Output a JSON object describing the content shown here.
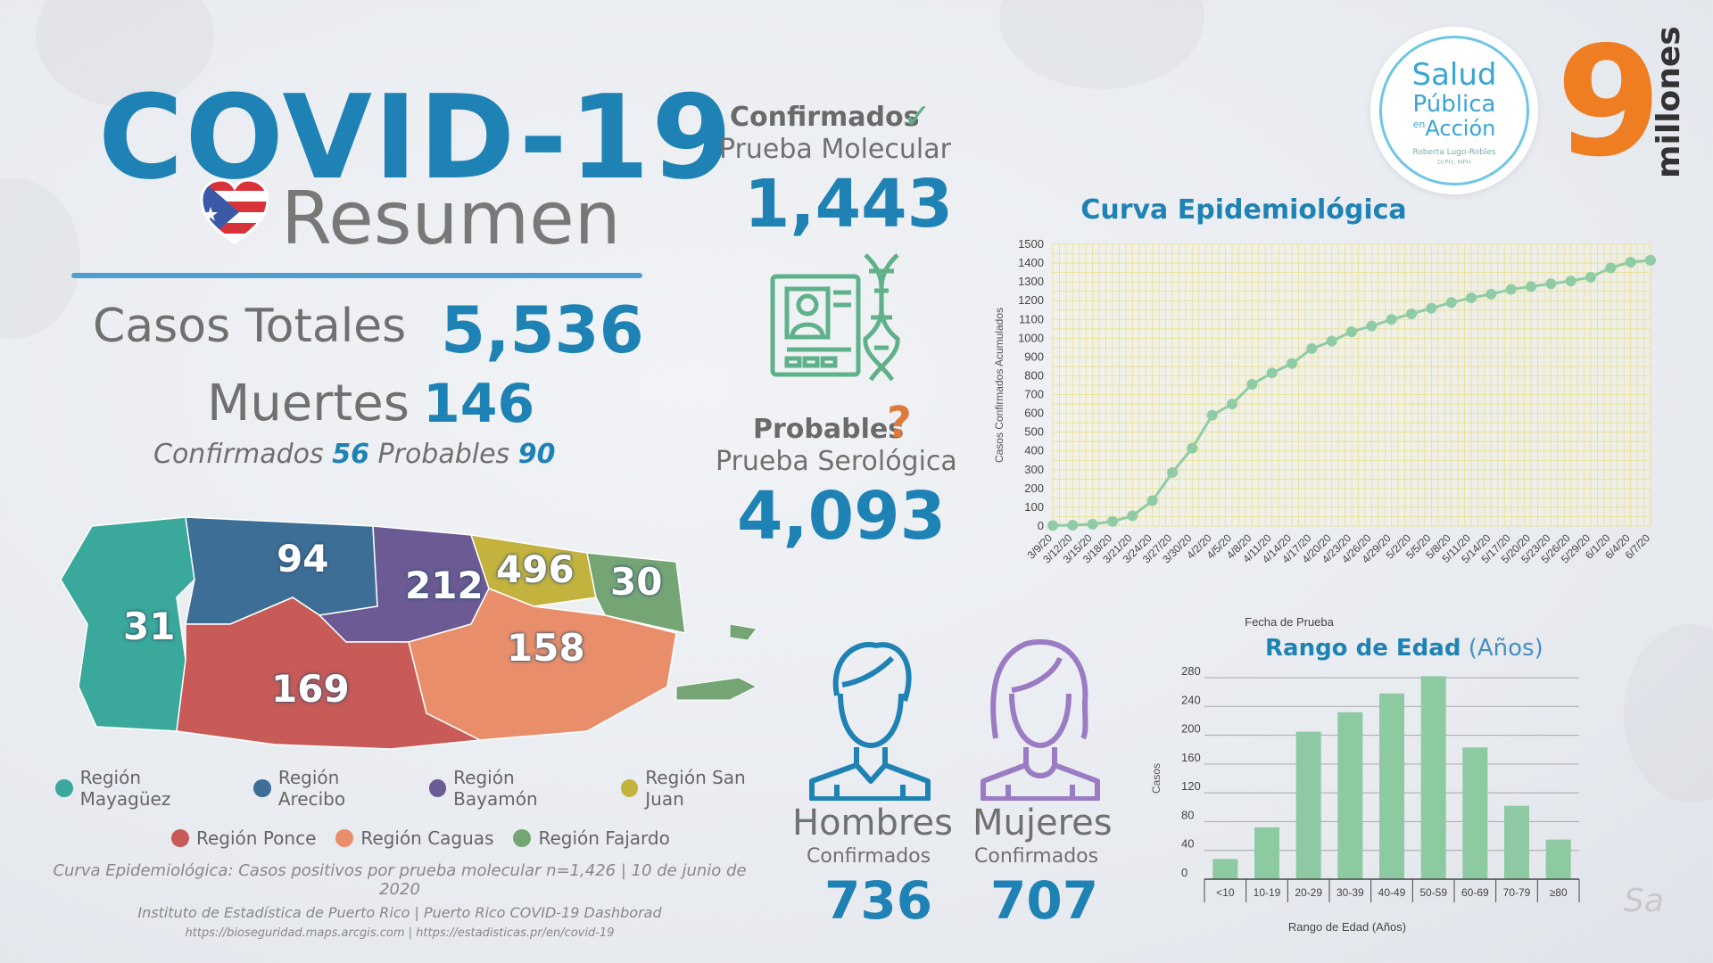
{
  "header": {
    "title": "COVID-19",
    "subtitle": "Resumen"
  },
  "summary": {
    "total_label": "Casos Totales",
    "total_value": "5,536",
    "deaths_label": "Muertes",
    "deaths_value": "146",
    "deaths_confirmed_label": "Confirmados",
    "deaths_confirmed_value": "56",
    "deaths_probable_label": "Probables",
    "deaths_probable_value": "90"
  },
  "map": {
    "regions": [
      {
        "name": "Región Mayagüez",
        "color": "#3aa89b",
        "value": "31"
      },
      {
        "name": "Región Arecibo",
        "color": "#3d6e96",
        "value": "94"
      },
      {
        "name": "Región Bayamón",
        "color": "#6b5a93",
        "value": "212"
      },
      {
        "name": "Región San Juan",
        "color": "#c4b23f",
        "value": "496"
      },
      {
        "name": "Región Ponce",
        "color": "#c85a57",
        "value": "169"
      },
      {
        "name": "Región Caguas",
        "color": "#e88e6a",
        "value": "158"
      },
      {
        "name": "Región Fajardo",
        "color": "#75a575",
        "value": "30"
      }
    ]
  },
  "tests": {
    "confirmed_label": "Confirmados",
    "confirmed_icon": "check-icon",
    "molecular_label": "Prueba Molecular",
    "molecular_value": "1,443",
    "probable_label": "Probables",
    "probable_icon": "question-icon",
    "serological_label": "Prueba Serológica",
    "serological_value": "4,093"
  },
  "gender": {
    "men_label": "Hombres",
    "men_sub": "Confirmados",
    "men_value": "736",
    "women_label": "Mujeres",
    "women_sub": "Confirmados",
    "women_value": "707"
  },
  "logo": {
    "line1": "Salud",
    "line2": "Pública",
    "line3_small": "en",
    "line3": "Acción",
    "line4": "Roberta Lugo-Robles",
    "line5": "DrPH, MPH"
  },
  "brand": {
    "nine": "9",
    "millones": "millones"
  },
  "footer": {
    "line1": "Curva Epidemiológica: Casos positivos por prueba molecular n=1,426 | 10 de junio de 2020",
    "line2": "Instituto de Estadística de Puerto Rico | Puerto Rico COVID-19 Dashborad",
    "line3": "https://bioseguridad.maps.arcgis.com | https://estadisticas.pr/en/covid-19"
  },
  "signature": "Sa",
  "chart_data": [
    {
      "type": "line",
      "title": "Curva Epidemiológica",
      "xlabel": "Fecha de Prueba",
      "ylabel": "Casos Confirmados Acumulados",
      "ylim": [
        0,
        1500
      ],
      "yticks": [
        0,
        100,
        200,
        300,
        400,
        500,
        600,
        700,
        800,
        900,
        1000,
        1100,
        1200,
        1300,
        1400,
        1500
      ],
      "grid": true,
      "color": "#8fcca6",
      "categories": [
        "3/9/20",
        "3/12/20",
        "3/15/20",
        "3/18/20",
        "3/21/20",
        "3/24/20",
        "3/27/20",
        "3/30/20",
        "4/2/20",
        "4/5/20",
        "4/8/20",
        "4/11/20",
        "4/14/20",
        "4/17/20",
        "4/20/20",
        "4/23/20",
        "4/26/20",
        "4/29/20",
        "5/2/20",
        "5/5/20",
        "5/8/20",
        "5/11/20",
        "5/14/20",
        "5/17/20",
        "5/20/20",
        "5/23/20",
        "5/26/20",
        "5/29/20",
        "6/1/20",
        "6/4/20",
        "6/7/20"
      ],
      "values": [
        3,
        5,
        10,
        25,
        55,
        135,
        285,
        415,
        590,
        650,
        755,
        815,
        865,
        945,
        985,
        1035,
        1065,
        1100,
        1130,
        1160,
        1190,
        1215,
        1235,
        1260,
        1275,
        1290,
        1305,
        1325,
        1375,
        1405,
        1415
      ]
    },
    {
      "type": "bar",
      "title": "Rango de Edad",
      "title_suffix": "(Años)",
      "xlabel": "Rango de Edad (Años)",
      "ylabel": "Casos",
      "ylim": [
        0,
        280
      ],
      "yticks": [
        0,
        40,
        80,
        120,
        160,
        200,
        240,
        280
      ],
      "color": "#8dcaa2",
      "categories": [
        "<10",
        "10-19",
        "20-29",
        "30-39",
        "40-49",
        "50-59",
        "60-69",
        "70-79",
        "≥80"
      ],
      "values": [
        28,
        72,
        205,
        232,
        258,
        282,
        183,
        102,
        55
      ]
    }
  ]
}
